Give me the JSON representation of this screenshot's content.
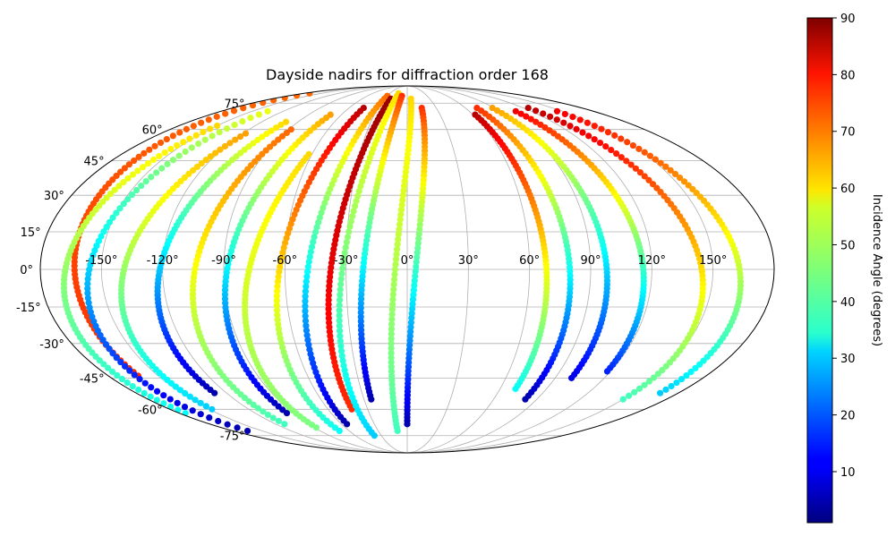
{
  "chart_data": {
    "type": "scatter",
    "projection": "mollweide",
    "title": "Dayside nadirs for diffraction order 168",
    "x_ticks": [
      "-150°",
      "-120°",
      "-90°",
      "-60°",
      "-30°",
      "0°",
      "30°",
      "60°",
      "90°",
      "120°",
      "150°"
    ],
    "y_ticks": [
      "75°",
      "60°",
      "45°",
      "30°",
      "15°",
      "0°",
      "-15°",
      "-30°",
      "-45°",
      "-60°",
      "-75°"
    ],
    "grid": true,
    "xlim": [
      -180,
      180
    ],
    "ylim": [
      -90,
      90
    ],
    "colorbar": {
      "label": "Incidence Angle (degrees)",
      "range": [
        1,
        90
      ],
      "ticks": [
        "10",
        "20",
        "30",
        "40",
        "50",
        "60",
        "70",
        "80",
        "90"
      ],
      "colormap": "jet"
    },
    "orbit_tracks": [
      {
        "lon_start": -170,
        "lat_start": 82,
        "lon_end": -162,
        "lat_end": -44,
        "inc_start": 70,
        "inc_end": 75
      },
      {
        "lon_start": -150,
        "lat_start": 62,
        "lon_end": -175,
        "lat_end": -62,
        "inc_start": 60,
        "inc_end": 35
      },
      {
        "lon_start": -135,
        "lat_start": 70,
        "lon_end": -165,
        "lat_end": -72,
        "inc_start": 55,
        "inc_end": 5
      },
      {
        "lon_start": -118,
        "lat_start": 58,
        "lon_end": -148,
        "lat_end": -60,
        "inc_start": 65,
        "inc_end": 30
      },
      {
        "lon_start": -100,
        "lat_start": 64,
        "lon_end": -128,
        "lat_end": -52,
        "inc_start": 60,
        "inc_end": 5
      },
      {
        "lon_start": -88,
        "lat_start": 60,
        "lon_end": -112,
        "lat_end": -68,
        "inc_start": 70,
        "inc_end": 40
      },
      {
        "lon_start": -70,
        "lat_start": 68,
        "lon_end": -95,
        "lat_end": -62,
        "inc_start": 65,
        "inc_end": 5
      },
      {
        "lon_start": -62,
        "lat_start": 48,
        "lon_end": -88,
        "lat_end": -70,
        "inc_start": 60,
        "inc_end": 45
      },
      {
        "lon_start": -45,
        "lat_start": 72,
        "lon_end": -70,
        "lat_end": -72,
        "inc_start": 85,
        "inc_end": 35
      },
      {
        "lon_start": -30,
        "lat_start": 80,
        "lon_end": -55,
        "lat_end": -68,
        "inc_start": 70,
        "inc_end": 5
      },
      {
        "lon_start": -22,
        "lat_start": 78,
        "lon_end": -42,
        "lat_end": -60,
        "inc_start": 88,
        "inc_end": 75
      },
      {
        "lon_start": -15,
        "lat_start": 82,
        "lon_end": -38,
        "lat_end": -75,
        "inc_start": 60,
        "inc_end": 30
      },
      {
        "lon_start": -8,
        "lat_start": 80,
        "lon_end": -25,
        "lat_end": -55,
        "inc_start": 75,
        "inc_end": 5
      },
      {
        "lon_start": 5,
        "lat_start": 78,
        "lon_end": -10,
        "lat_end": -72,
        "inc_start": 60,
        "inc_end": 40
      },
      {
        "lon_start": 15,
        "lat_start": 72,
        "lon_end": 0,
        "lat_end": -68,
        "inc_start": 75,
        "inc_end": 5
      },
      {
        "lon_start": 62,
        "lat_start": 68,
        "lon_end": 70,
        "lat_end": -50,
        "inc_start": 85,
        "inc_end": 35
      },
      {
        "lon_start": 72,
        "lat_start": 72,
        "lon_end": 82,
        "lat_end": -55,
        "inc_start": 75,
        "inc_end": 5
      },
      {
        "lon_start": 88,
        "lat_start": 72,
        "lon_end": 100,
        "lat_end": -45,
        "inc_start": 65,
        "inc_end": 10
      },
      {
        "lon_start": 105,
        "lat_start": 70,
        "lon_end": 118,
        "lat_end": -42,
        "inc_start": 80,
        "inc_end": 15
      },
      {
        "lon_start": 125,
        "lat_start": 72,
        "lon_end": 150,
        "lat_end": -55,
        "inc_start": 85,
        "inc_end": 40
      },
      {
        "lon_start": 145,
        "lat_start": 70,
        "lon_end": 168,
        "lat_end": -52,
        "inc_start": 80,
        "inc_end": 30
      }
    ]
  }
}
